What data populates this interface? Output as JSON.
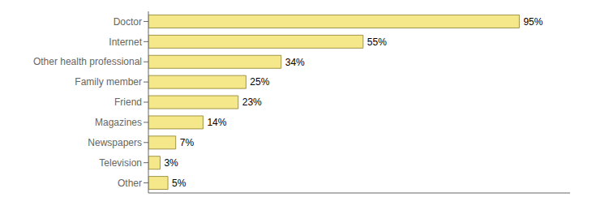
{
  "chart_data": {
    "type": "bar",
    "orientation": "horizontal",
    "categories": [
      "Doctor",
      "Internet",
      "Other health professional",
      "Family member",
      "Friend",
      "Magazines",
      "Newspapers",
      "Television",
      "Other"
    ],
    "values": [
      95,
      55,
      34,
      25,
      23,
      14,
      7,
      3,
      5
    ],
    "value_labels": [
      "95%",
      "55%",
      "34%",
      "25%",
      "23%",
      "14%",
      "7%",
      "3%",
      "5%"
    ],
    "data_labels": true,
    "color": "#F5E88A",
    "xlim": [
      0,
      108
    ],
    "tick_labels": "y",
    "grid": false
  }
}
